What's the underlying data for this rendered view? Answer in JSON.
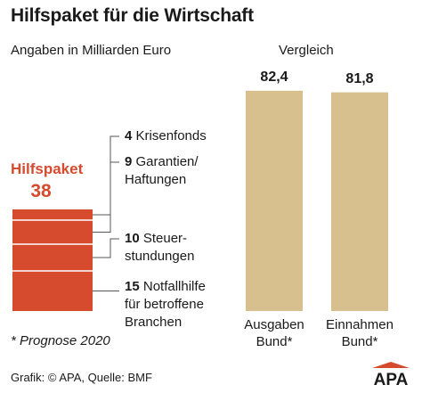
{
  "title": "Hilfspaket für die Wirtschaft",
  "subtitle": "Angaben in Milliarden Euro",
  "comparison_label": "Vergleich",
  "footnote": "* Prognose 2020",
  "source": "Grafik: © APA, Quelle: BMF",
  "logo_text": "APA",
  "colors": {
    "package": "#d64a2e",
    "comparison": "#d8c08e",
    "text": "#1a1a1a",
    "leader": "#555555"
  },
  "chart_data": [
    {
      "type": "bar",
      "stacked": true,
      "title": "Hilfspaket",
      "total": 38,
      "total_label": "38",
      "series": [
        {
          "value": 15,
          "value_label": "15",
          "label_lines": [
            "Notfallhilfe",
            "für betroffene",
            "Branchen"
          ]
        },
        {
          "value": 10,
          "value_label": "10",
          "label_lines": [
            "Steuer-",
            "stundungen"
          ]
        },
        {
          "value": 9,
          "value_label": "9",
          "label_lines": [
            "Garantien/",
            "Haftungen"
          ]
        },
        {
          "value": 4,
          "value_label": "4",
          "label_lines": [
            "Krisenfonds"
          ]
        }
      ]
    },
    {
      "type": "bar",
      "title": "Vergleich",
      "categories": [
        {
          "lines": [
            "Ausgaben",
            "Bund*"
          ]
        },
        {
          "lines": [
            "Einnahmen",
            "Bund*"
          ]
        }
      ],
      "values": [
        82.4,
        81.8
      ],
      "value_labels": [
        "82,4",
        "81,8"
      ]
    }
  ]
}
